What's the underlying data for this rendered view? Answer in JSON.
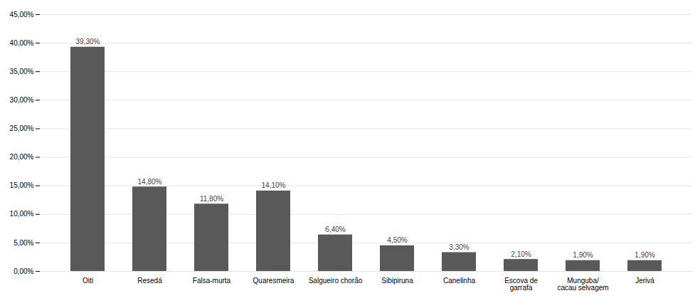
{
  "chart_data": {
    "type": "bar",
    "categories": [
      "Oiti",
      "Resedá",
      "Falsa-murta",
      "Quaresmeira",
      "Salgueiro chorão",
      "Sibipiruna",
      "Canelinha",
      "Escova de\ngarrafa",
      "Munguba/\ncacau selvagem",
      "Jerivá"
    ],
    "values": [
      39.3,
      14.8,
      11.8,
      14.1,
      6.4,
      4.5,
      3.3,
      2.1,
      1.9,
      1.9
    ],
    "value_labels": [
      "39,30%",
      "14,80%",
      "11,80%",
      "14,10%",
      "6,40%",
      "4,50%",
      "3,30%",
      "2,10%",
      "1,90%",
      "1,90%"
    ],
    "data_labels": true,
    "color": "#595959",
    "ylim": [
      0,
      45
    ],
    "yticks": [
      {
        "value": 0,
        "label": "0,00%"
      },
      {
        "value": 5,
        "label": "5,00%"
      },
      {
        "value": 10,
        "label": "10,00%"
      },
      {
        "value": 15,
        "label": "15,00%"
      },
      {
        "value": 20,
        "label": "20,00%"
      },
      {
        "value": 25,
        "label": "25,00%"
      },
      {
        "value": 30,
        "label": "30,00%"
      },
      {
        "value": 35,
        "label": "35,00%"
      },
      {
        "value": 40,
        "label": "40,00%"
      },
      {
        "value": 45,
        "label": "45,00%"
      }
    ],
    "grid": true
  }
}
